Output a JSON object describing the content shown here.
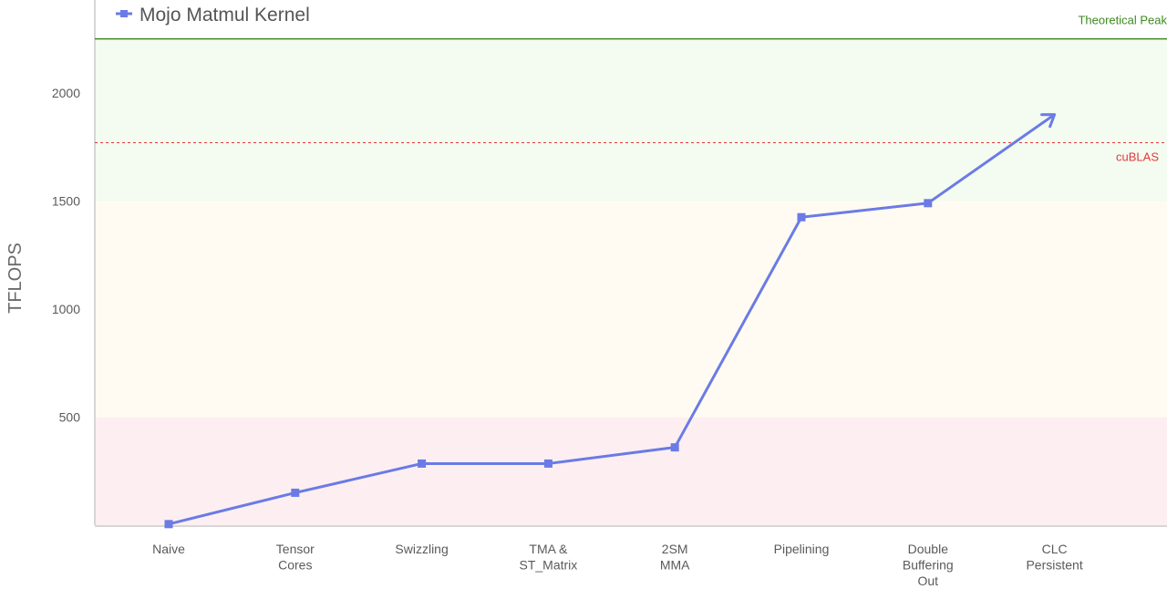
{
  "chart_data": {
    "type": "line",
    "categories": [
      [
        "Naive"
      ],
      [
        "Tensor",
        "Cores"
      ],
      [
        "Swizzling"
      ],
      [
        "TMA &",
        "ST_Matrix"
      ],
      [
        "2SM",
        "MMA"
      ],
      [
        "Pipelining"
      ],
      [
        "Double",
        "Buffering",
        "Out"
      ],
      [
        "CLC",
        "Persistent"
      ]
    ],
    "series": [
      {
        "name": "Mojo Matmul Kernel",
        "color": "#6a7be6",
        "values": [
          5,
          150,
          285,
          285,
          360,
          1425,
          1490,
          1900
        ],
        "last_point_style": "arrow"
      }
    ],
    "ylabel": "TFLOPS",
    "xlabel": "",
    "yticks": [
      500,
      1000,
      1500,
      2000
    ],
    "ylim": [
      0,
      2430
    ],
    "reference_lines": [
      {
        "label": "Theoretical Peak",
        "value": 2250,
        "color": "#3d8a1e",
        "style": "solid"
      },
      {
        "label": "cuBLAS",
        "value": 1770,
        "color": "#e23a3a",
        "style": "dashed"
      }
    ],
    "bands": [
      {
        "from": 0,
        "to": 500,
        "color": "#fdeff1"
      },
      {
        "from": 500,
        "to": 1500,
        "color": "#fffbf2"
      },
      {
        "from": 1500,
        "to": 2250,
        "color": "#f4fbf0"
      }
    ],
    "legend": "top-left",
    "grid": false
  }
}
